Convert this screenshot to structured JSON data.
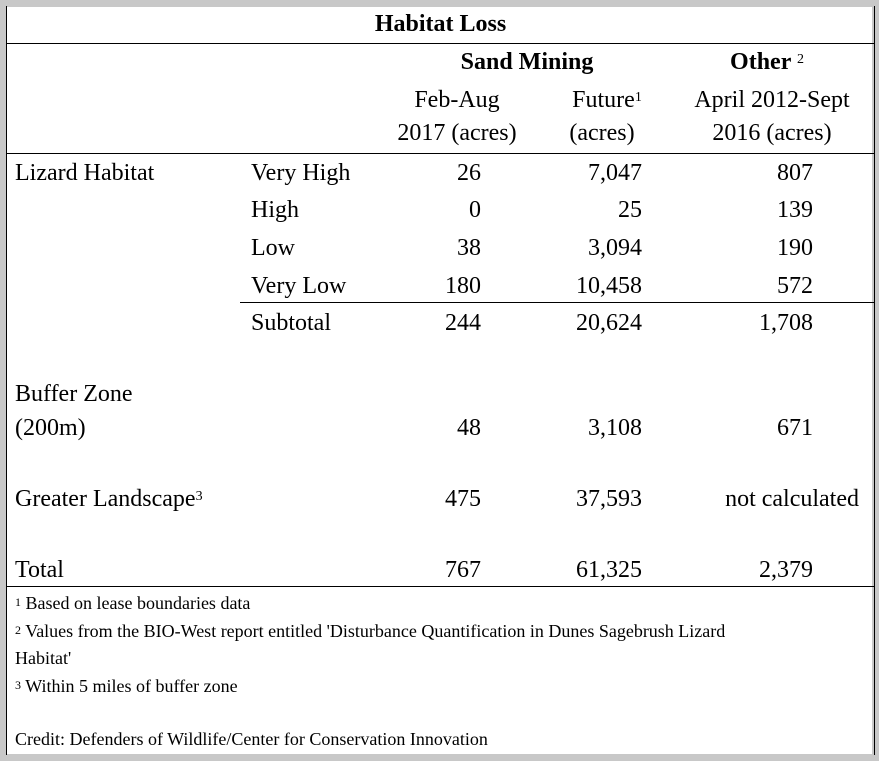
{
  "table": {
    "title": "Habitat Loss",
    "groups": {
      "sand_mining": "Sand Mining",
      "other": "Other",
      "other_note_mark": "2"
    },
    "columns": {
      "feb_aug_line1": "Feb-Aug",
      "feb_aug_line2": "2017 (acres)",
      "future_line1": "Future",
      "future_note_mark": "1",
      "future_line2": "(acres)",
      "other_line1": "April 2012-Sept",
      "other_line2": "2016 (acres)"
    },
    "lizard": {
      "label": "Lizard Habitat",
      "rows": [
        {
          "label": "Very High",
          "feb_aug": "26",
          "future": "7,047",
          "other": "807"
        },
        {
          "label": "High",
          "feb_aug": "0",
          "future": "25",
          "other": "139"
        },
        {
          "label": "Low",
          "feb_aug": "38",
          "future": "3,094",
          "other": "190"
        },
        {
          "label": "Very Low",
          "feb_aug": "180",
          "future": "10,458",
          "other": "572"
        }
      ],
      "subtotal": {
        "label": "Subtotal",
        "feb_aug": "244",
        "future": "20,624",
        "other": "1,708"
      }
    },
    "buffer": {
      "label_line1": "Buffer Zone",
      "label_line2": "(200m)",
      "feb_aug": "48",
      "future": "3,108",
      "other": "671"
    },
    "greater": {
      "label": "Greater Landscape",
      "note_mark": "3",
      "feb_aug": "475",
      "future": "37,593",
      "other": "not calculated"
    },
    "total": {
      "label": "Total",
      "feb_aug": "767",
      "future": "61,325",
      "other": "2,379"
    }
  },
  "footnotes": [
    {
      "mark": "1",
      "text": "Based on lease boundaries data"
    },
    {
      "mark": "2",
      "text_line1": "Values from the BIO-West report entitled 'Disturbance Quantification in Dunes Sagebrush Lizard",
      "text_line2": "Habitat'"
    },
    {
      "mark": "3",
      "text": "Within 5 miles of buffer zone"
    }
  ],
  "credit": "Credit: Defenders of Wildlife/Center for Conservation Innovation"
}
